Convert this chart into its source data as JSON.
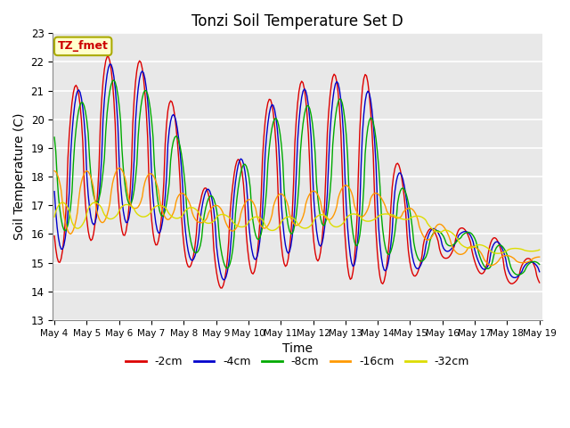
{
  "title": "Tonzi Soil Temperature Set D",
  "xlabel": "Time",
  "ylabel": "Soil Temperature (C)",
  "ylim": [
    13.0,
    23.0
  ],
  "yticks": [
    13.0,
    14.0,
    15.0,
    16.0,
    17.0,
    18.0,
    19.0,
    20.0,
    21.0,
    22.0,
    23.0
  ],
  "legend_label": "TZ_fmet",
  "legend_bbox_facecolor": "#ffffcc",
  "legend_bbox_edgecolor": "#aaaa00",
  "line_colors": {
    "-2cm": "#dd0000",
    "-4cm": "#0000cc",
    "-8cm": "#00aa00",
    "-16cm": "#ff9900",
    "-32cm": "#dddd00"
  },
  "background_color": "#e8e8e8",
  "grid_color": "#ffffff",
  "x_start_day": 4,
  "x_end_day": 19,
  "xtick_days": [
    4,
    5,
    6,
    7,
    8,
    9,
    10,
    11,
    12,
    13,
    14,
    15,
    16,
    17,
    18,
    19
  ]
}
